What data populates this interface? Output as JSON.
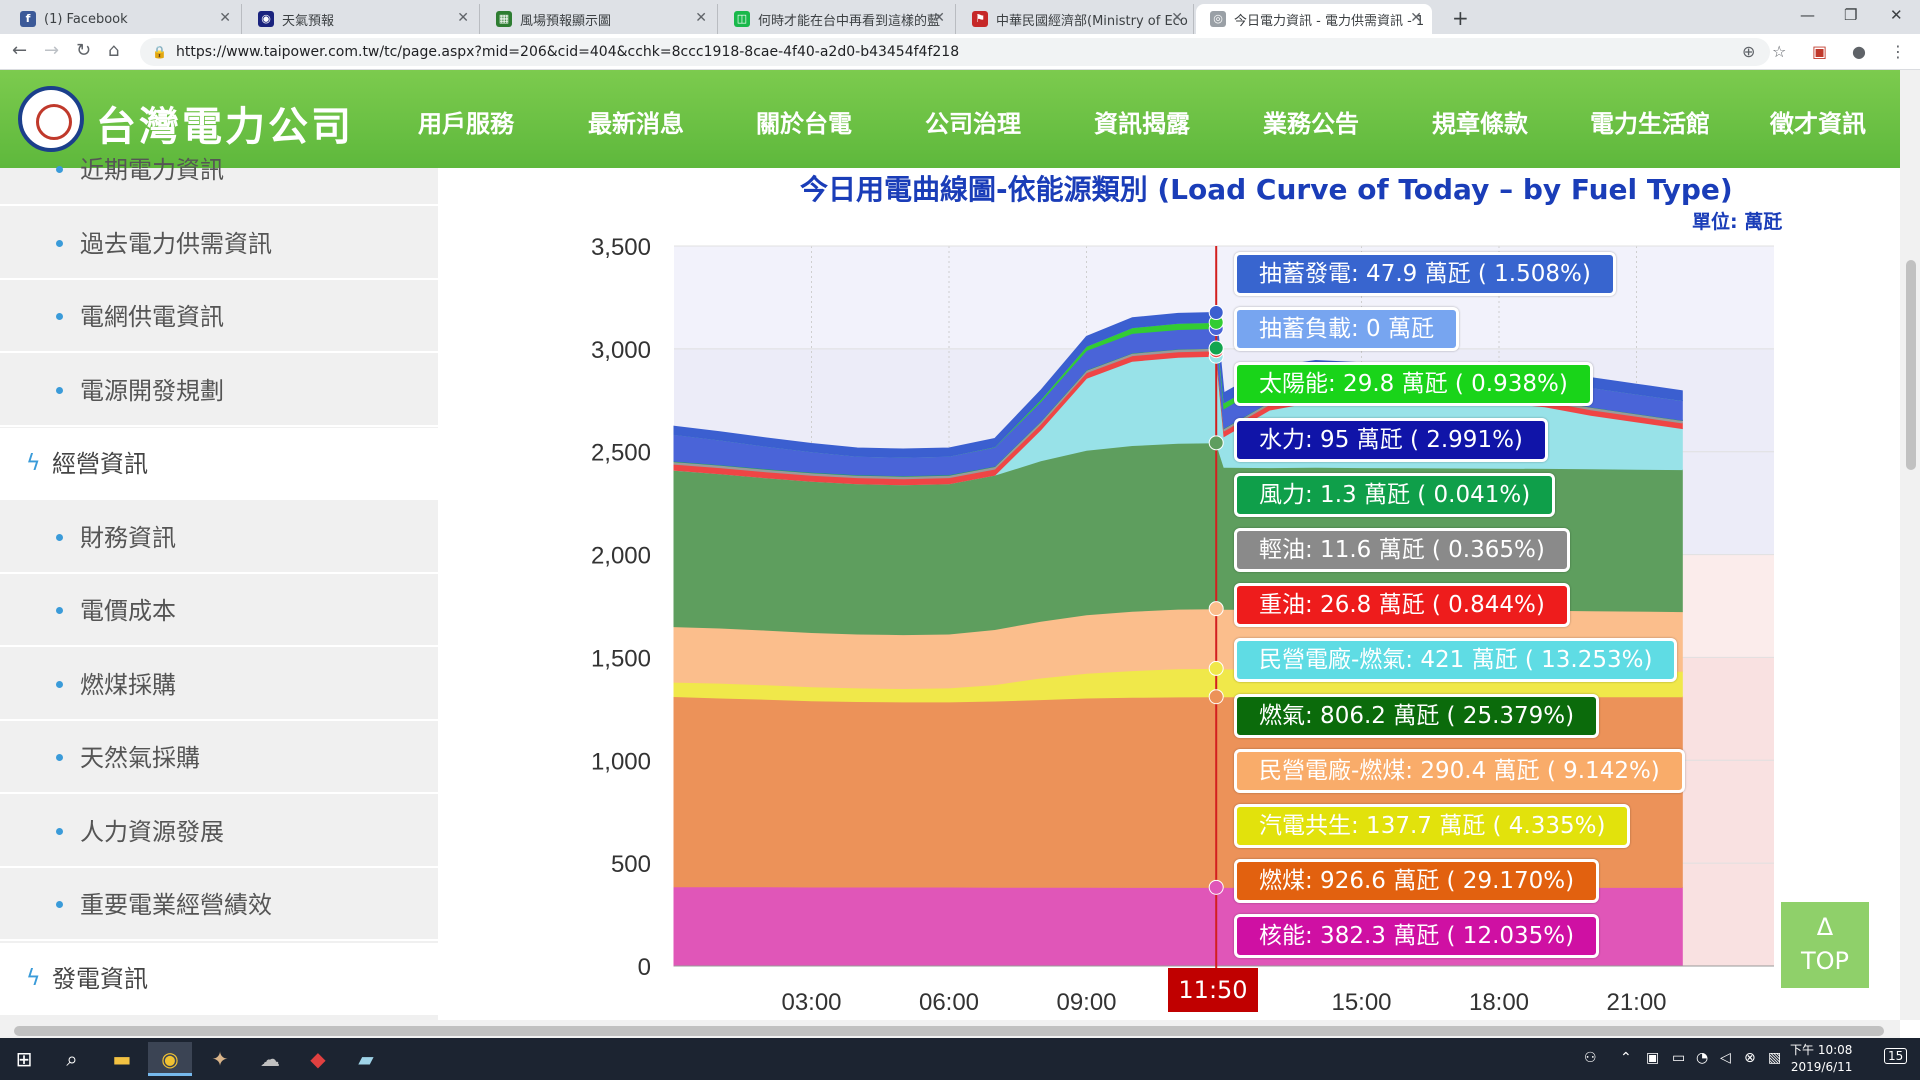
{
  "browser": {
    "tabs": [
      {
        "title": "(1) Facebook",
        "fav_color": "#3b5998",
        "fav_glyph": "f"
      },
      {
        "title": "天氣預報",
        "fav_color": "#1a237e",
        "fav_glyph": "◉"
      },
      {
        "title": "風場預報顯示圖",
        "fav_color": "#2e7d32",
        "fav_glyph": "▦"
      },
      {
        "title": "何時才能在台中再看到這樣的藍",
        "fav_color": "#19b84b",
        "fav_glyph": "◫"
      },
      {
        "title": "中華民國經濟部(Ministry of Eco",
        "fav_color": "#c62828",
        "fav_glyph": "⚑"
      },
      {
        "title": "今日電力資訊 - 電力供需資訊 - 1",
        "fav_color": "#9aa0a6",
        "fav_glyph": "◎"
      }
    ],
    "url": "https://www.taipower.com.tw/tc/page.aspx?mid=206&cid=404&cchk=8ccc1918-8cae-4f40-a2d0-b43454f4f218"
  },
  "site": {
    "logo_text": "台灣電力公司",
    "nav": [
      "用戶服務",
      "最新消息",
      "關於台電",
      "公司治理",
      "資訊揭露",
      "業務公告",
      "規章條款",
      "電力生活館",
      "徵才資訊"
    ]
  },
  "sidebar": {
    "items": [
      {
        "label": "近期電力資訊",
        "kind": "sub"
      },
      {
        "label": "過去電力供需資訊",
        "kind": "sub"
      },
      {
        "label": "電網供電資訊",
        "kind": "sub"
      },
      {
        "label": "電源開發規劃",
        "kind": "sub"
      },
      {
        "label": "經營資訊",
        "kind": "cat"
      },
      {
        "label": "財務資訊",
        "kind": "sub"
      },
      {
        "label": "電價成本",
        "kind": "sub"
      },
      {
        "label": "燃煤採購",
        "kind": "sub"
      },
      {
        "label": "天然氣採購",
        "kind": "sub"
      },
      {
        "label": "人力資源發展",
        "kind": "sub"
      },
      {
        "label": "重要電業經營績效",
        "kind": "sub"
      },
      {
        "label": "發電資訊",
        "kind": "cat"
      }
    ]
  },
  "chart_title": "今日用電曲線圖-依能源類別 (Load Curve of Today – by Fuel Type)",
  "unit_label": "單位: 萬瓩",
  "selected_time": "11:50",
  "top_button": {
    "arrow": "Δ",
    "label": "TOP"
  },
  "chart_data": {
    "type": "area",
    "stacked": true,
    "title": "今日用電曲線圖-依能源類別 (Load Curve of Today – by Fuel Type)",
    "ylabel": "萬瓩",
    "ylim": [
      0,
      3500
    ],
    "yticks": [
      "0",
      "500",
      "1,000",
      "1,500",
      "2,000",
      "2,500",
      "3,000",
      "3,500"
    ],
    "xticks": [
      "03:00",
      "06:00",
      "09:00",
      "15:00",
      "18:00",
      "21:00"
    ],
    "xtick_hours": [
      3,
      6,
      9,
      15,
      18,
      21
    ],
    "x_hours": [
      0,
      1,
      2,
      3,
      4,
      5,
      6,
      7,
      8,
      9,
      10,
      11,
      11.83,
      12,
      13,
      14,
      15,
      16,
      17,
      18,
      19,
      20,
      21,
      22
    ],
    "cursor_hour": 11.83,
    "series": [
      {
        "name": "核能",
        "color": "#e056b8",
        "values": [
          385,
          385,
          385,
          384,
          384,
          384,
          384,
          383,
          383,
          383,
          382,
          382,
          382.3,
          382,
          382,
          382,
          382,
          382,
          382,
          382,
          382,
          382,
          382,
          382
        ]
      },
      {
        "name": "燃煤",
        "color": "#ec9259",
        "values": [
          925,
          918,
          912,
          905,
          902,
          900,
          900,
          905,
          912,
          920,
          924,
          926,
          926.6,
          927,
          927,
          927,
          927,
          927,
          927,
          927,
          927,
          927,
          927,
          927
        ]
      },
      {
        "name": "汽電共生",
        "color": "#f0e84a",
        "values": [
          70,
          72,
          70,
          68,
          66,
          65,
          68,
          80,
          105,
          120,
          130,
          137,
          137.7,
          135,
          134,
          135,
          134,
          133,
          132,
          131,
          130,
          128,
          126,
          124
        ]
      },
      {
        "name": "民營電廠-燃煤",
        "color": "#fbbe8c",
        "values": [
          270,
          268,
          266,
          264,
          262,
          262,
          262,
          268,
          276,
          284,
          288,
          290,
          290.4,
          290,
          290,
          290,
          290,
          290,
          290,
          290,
          290,
          290,
          290,
          290
        ]
      },
      {
        "name": "燃氣",
        "color": "#5e9e5e",
        "values": [
          760,
          750,
          740,
          735,
          730,
          728,
          730,
          750,
          780,
          800,
          806,
          806,
          806.2,
          690,
          690,
          690,
          690,
          690,
          690,
          690,
          690,
          690,
          690,
          690
        ]
      },
      {
        "name": "民營電廠-燃氣",
        "color": "#98e2e8",
        "values": [
          0,
          0,
          0,
          0,
          0,
          0,
          0,
          0,
          150,
          350,
          410,
          418,
          421,
          150,
          280,
          320,
          320,
          320,
          320,
          320,
          300,
          260,
          230,
          200
        ]
      },
      {
        "name": "重油",
        "color": "#ef4545",
        "values": [
          30,
          30,
          30,
          30,
          30,
          30,
          30,
          30,
          28,
          27,
          27,
          27,
          26.8,
          27,
          27,
          27,
          27,
          27,
          27,
          27,
          27,
          27,
          27,
          27
        ]
      },
      {
        "name": "輕油",
        "color": "#9a9a9a",
        "values": [
          12,
          12,
          12,
          12,
          12,
          12,
          12,
          12,
          12,
          12,
          12,
          12,
          11.6,
          12,
          12,
          12,
          12,
          12,
          12,
          12,
          12,
          12,
          12,
          12
        ]
      },
      {
        "name": "風力",
        "color": "#12a54f",
        "values": [
          2,
          2,
          2,
          2,
          2,
          2,
          2,
          2,
          2,
          1.5,
          1.3,
          1.3,
          1.3,
          1.3,
          1.3,
          1.3,
          1.3,
          1.3,
          1.3,
          1.3,
          1.3,
          1.3,
          1.3,
          1.3
        ]
      },
      {
        "name": "水力",
        "color": "#4a64d8",
        "values": [
          130,
          120,
          110,
          100,
          90,
          90,
          90,
          92,
          95,
          95,
          95,
          95,
          95,
          95,
          95,
          95,
          95,
          95,
          95,
          95,
          95,
          95,
          95,
          95
        ]
      },
      {
        "name": "太陽能",
        "color": "#33cc33",
        "values": [
          0,
          0,
          0,
          0,
          0,
          0,
          0,
          2,
          10,
          20,
          28,
          30,
          29.8,
          29,
          24,
          16,
          6,
          0,
          0,
          0,
          0,
          0,
          0,
          0
        ]
      },
      {
        "name": "抽蓄負載",
        "color": "#7fa6f0",
        "values": [
          0,
          0,
          0,
          0,
          0,
          0,
          0,
          0,
          0,
          0,
          0,
          0,
          0,
          0,
          0,
          0,
          0,
          0,
          0,
          0,
          0,
          0,
          0,
          0
        ]
      },
      {
        "name": "抽蓄發電",
        "color": "#3b5fd0",
        "values": [
          40,
          40,
          40,
          40,
          40,
          40,
          40,
          40,
          45,
          48,
          48,
          48,
          47.9,
          48,
          48,
          48,
          48,
          48,
          48,
          48,
          48,
          48,
          48,
          48
        ]
      }
    ],
    "tooltip": [
      {
        "name": "抽蓄發電",
        "text": "抽蓄發電: 47.9 萬瓩 ( 1.508%)",
        "color": "#3865cf"
      },
      {
        "name": "抽蓄負載",
        "text": "抽蓄負載: 0 萬瓩",
        "color": "#77a5f0"
      },
      {
        "name": "太陽能",
        "text": "太陽能: 29.8 萬瓩 ( 0.938%)",
        "color": "#19d419"
      },
      {
        "name": "水力",
        "text": "水力: 95 萬瓩 ( 2.991%)",
        "color": "#1014a8"
      },
      {
        "name": "風力",
        "text": "風力: 1.3 萬瓩 ( 0.041%)",
        "color": "#0f9f4a"
      },
      {
        "name": "輕油",
        "text": "輕油: 11.6 萬瓩 ( 0.365%)",
        "color": "#8a8a8a"
      },
      {
        "name": "重油",
        "text": "重油: 26.8 萬瓩 ( 0.844%)",
        "color": "#ee1c1c"
      },
      {
        "name": "民營電廠-燃氣",
        "text": "民營電廠-燃氣: 421 萬瓩 ( 13.253%)",
        "color": "#5fdce4"
      },
      {
        "name": "燃氣",
        "text": "燃氣: 806.2 萬瓩 ( 25.379%)",
        "color": "#0b6b0b"
      },
      {
        "name": "民營電廠-燃煤",
        "text": "民營電廠-燃煤: 290.4 萬瓩 ( 9.142%)",
        "color": "#f9ac6a"
      },
      {
        "name": "汽電共生",
        "text": "汽電共生: 137.7 萬瓩 ( 4.335%)",
        "color": "#e2e20c"
      },
      {
        "name": "燃煤",
        "text": "燃煤: 926.6 萬瓩 ( 29.170%)",
        "color": "#e2610f"
      },
      {
        "name": "核能",
        "text": "核能: 382.3 萬瓩 ( 12.035%)",
        "color": "#cf10a3"
      }
    ],
    "bands": [
      {
        "from": 3000,
        "to": 3500,
        "color": "#f2f2fb"
      },
      {
        "from": 2000,
        "to": 3000,
        "color": "#ececf8"
      },
      {
        "from": 1500,
        "to": 2000,
        "color": "#fbeceb"
      },
      {
        "from": 0,
        "to": 1500,
        "color": "#f9e1e1"
      }
    ]
  },
  "taskbar": {
    "time": "下午 10:08",
    "date": "2019/6/11",
    "notif_count": "15"
  }
}
